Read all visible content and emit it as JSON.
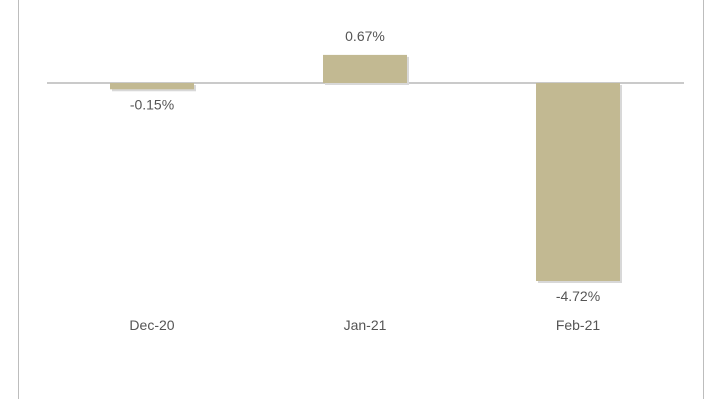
{
  "chart_data": {
    "type": "bar",
    "title": "",
    "xlabel": "",
    "ylabel": "",
    "categories": [
      "Dec-20",
      "Jan-21",
      "Feb-21"
    ],
    "series": [
      {
        "values": [
          -0.15,
          0.67,
          -4.72
        ],
        "labels": [
          "-0.15%",
          "0.67%",
          "-4.72%"
        ],
        "color": "#c2b992"
      }
    ],
    "ylim": [
      -4.72,
      0.67
    ],
    "grid": false,
    "legend": "none"
  }
}
